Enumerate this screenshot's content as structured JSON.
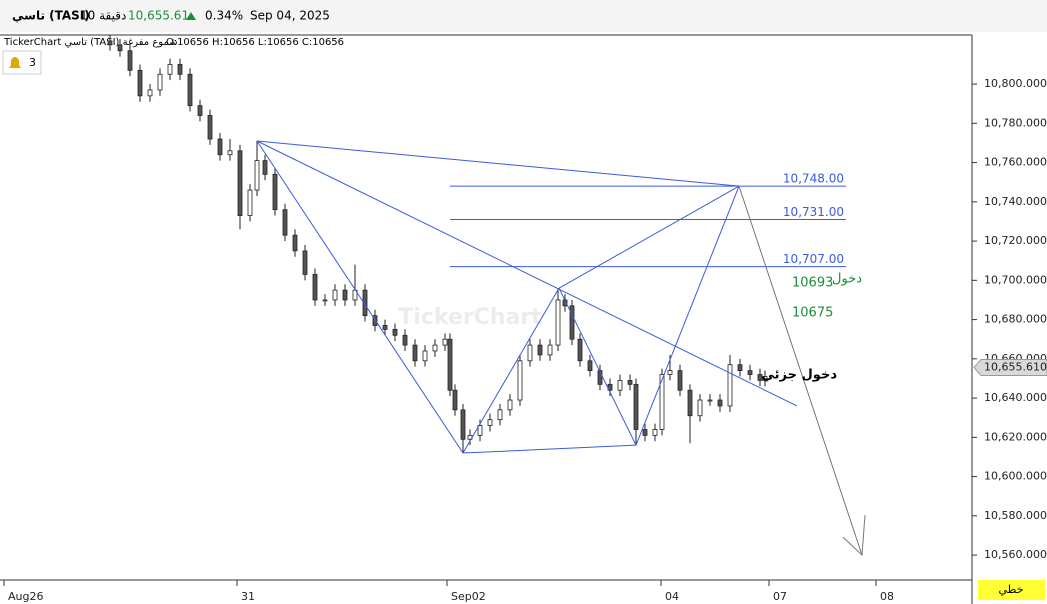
{
  "header": {
    "symbol": "تاسي (TASI)",
    "interval": "10 دقيقة",
    "price": "10,655.61",
    "change": "0.34%",
    "date": "Sep 04, 2025"
  },
  "chart_data": {
    "type": "candlestick",
    "legend_name": "TickerChart تاسي (TASI) شموع مفرغة",
    "ohlc_label": "O:10656  H:10656  L:10656  C:10656",
    "alerts": "3",
    "watermark": "TickerChart",
    "chart_style": "خطي",
    "xlim": [
      0,
      97.2
    ],
    "xticks": [
      {
        "value": 0.4,
        "label": "Aug26"
      },
      {
        "value": 23.7,
        "label": "31"
      },
      {
        "value": 44.7,
        "label": "Sep02"
      },
      {
        "value": 66.1,
        "label": "04"
      },
      {
        "value": 76.9,
        "label": "07"
      },
      {
        "value": 87.6,
        "label": "08"
      }
    ],
    "ylim": [
      10547.3,
      10824.5
    ],
    "yticks": [
      {
        "value": 10560,
        "label": "10,560.0000"
      },
      {
        "value": 10580,
        "label": "10,580.0000"
      },
      {
        "value": 10600,
        "label": "10,600.0000"
      },
      {
        "value": 10620,
        "label": "10,620.0000"
      },
      {
        "value": 10640,
        "label": "10,640.0000"
      },
      {
        "value": 10660,
        "label": "10,660.0000"
      },
      {
        "value": 10680,
        "label": "10,680.0000"
      },
      {
        "value": 10700,
        "label": "10,700.0000"
      },
      {
        "value": 10720,
        "label": "10,720.0000"
      },
      {
        "value": 10740,
        "label": "10,740.0000"
      },
      {
        "value": 10760,
        "label": "10,760.0000"
      },
      {
        "value": 10780,
        "label": "10,780.0000"
      },
      {
        "value": 10800,
        "label": "10,800.0000"
      }
    ],
    "last_price": {
      "value": 10655.6104,
      "label": "10,655.6104"
    },
    "x": [
      11,
      12,
      13,
      14,
      15,
      16,
      17,
      18,
      19,
      20,
      21,
      22,
      23,
      24,
      25,
      25.7,
      26.5,
      27.5,
      28.5,
      29.5,
      30.5,
      31.5,
      32.5,
      33.5,
      34.5,
      35.5,
      36.5,
      37.5,
      38.5,
      39.5,
      40.5,
      41.5,
      42.5,
      43.5,
      44.5,
      45,
      45.5,
      46.3,
      47,
      48,
      49,
      50,
      51,
      52,
      53,
      54,
      55,
      55.8,
      56.5,
      57.2,
      58,
      59,
      60,
      61,
      62,
      63,
      63.6,
      64.5,
      65.5,
      66.2,
      67,
      68,
      69,
      70,
      71,
      72,
      73,
      74,
      75,
      76,
      76.5
    ],
    "open": [
      10822,
      10820,
      10817,
      10807,
      10794,
      10797,
      10805,
      10810,
      10805,
      10789,
      10784,
      10772,
      10764,
      10766,
      10733,
      10746,
      10761,
      10754,
      10736,
      10723,
      10715,
      10703,
      10690,
      10690,
      10695,
      10690,
      10695,
      10682,
      10677,
      10675,
      10672,
      10667,
      10659,
      10664,
      10667,
      10670,
      10644,
      10634,
      10619,
      10621,
      10626,
      10629,
      10634,
      10639,
      10659,
      10667,
      10662,
      10667,
      10690,
      10687,
      10670,
      10659,
      10654,
      10647,
      10644,
      10649,
      10647,
      10624,
      10621,
      10624,
      10652,
      10654,
      10644,
      10631,
      10639,
      10639,
      10636,
      10657,
      10654,
      10652,
      10649
    ],
    "high": [
      10825,
      10823,
      10820,
      10810,
      10800,
      10808,
      10813,
      10813,
      10808,
      10792,
      10787,
      10775,
      10772,
      10769,
      10749,
      10771,
      10764,
      10757,
      10739,
      10726,
      10718,
      10706,
      10693,
      10698,
      10698,
      10708,
      10698,
      10685,
      10680,
      10678,
      10675,
      10670,
      10667,
      10670,
      10673,
      10673,
      10647,
      10637,
      10624,
      10629,
      10632,
      10637,
      10642,
      10662,
      10670,
      10670,
      10670,
      10696,
      10693,
      10690,
      10673,
      10662,
      10657,
      10650,
      10652,
      10652,
      10650,
      10627,
      10627,
      10655,
      10662,
      10657,
      10647,
      10642,
      10642,
      10642,
      10662,
      10660,
      10657,
      10655,
      10654
    ],
    "low": [
      10817,
      10814,
      10804,
      10791,
      10791,
      10794,
      10802,
      10802,
      10786,
      10781,
      10769,
      10761,
      10761,
      10726,
      10730,
      10743,
      10751,
      10733,
      10720,
      10712,
      10700,
      10687,
      10687,
      10687,
      10687,
      10687,
      10679,
      10674,
      10672,
      10669,
      10664,
      10656,
      10656,
      10661,
      10664,
      10641,
      10631,
      10612,
      10616,
      10618,
      10623,
      10626,
      10631,
      10636,
      10656,
      10659,
      10659,
      10664,
      10684,
      10667,
      10656,
      10651,
      10644,
      10641,
      10641,
      10644,
      10616,
      10618,
      10618,
      10621,
      10649,
      10641,
      10617,
      10628,
      10636,
      10633,
      10633,
      10651,
      10649,
      10646,
      10646
    ],
    "close": [
      10820,
      10817,
      10807,
      10794,
      10797,
      10805,
      10810,
      10805,
      10789,
      10784,
      10772,
      10764,
      10766,
      10733,
      10746,
      10761,
      10754,
      10736,
      10723,
      10715,
      10703,
      10690,
      10690,
      10695,
      10690,
      10695,
      10682,
      10677,
      10675,
      10672,
      10667,
      10659,
      10664,
      10667,
      10670,
      10644,
      10634,
      10619,
      10621,
      10626,
      10629,
      10634,
      10639,
      10659,
      10667,
      10662,
      10667,
      10690,
      10687,
      10670,
      10659,
      10654,
      10647,
      10644,
      10649,
      10647,
      10624,
      10621,
      10624,
      10652,
      10654,
      10644,
      10631,
      10639,
      10639,
      10636,
      10657,
      10654,
      10652,
      10649,
      10651
    ],
    "pattern_color": "#3b5bdb",
    "pattern_lines": [
      {
        "x": [
          25.7,
          46.3
        ],
        "y": [
          10771,
          10612
        ]
      },
      {
        "x": [
          46.3,
          55.9
        ],
        "y": [
          10612,
          10696
        ]
      },
      {
        "x": [
          55.9,
          63.6
        ],
        "y": [
          10696,
          10616
        ]
      },
      {
        "x": [
          63.6,
          73.9
        ],
        "y": [
          10616,
          10748
        ]
      },
      {
        "x": [
          25.7,
          73.9
        ],
        "y": [
          10771,
          10748
        ]
      },
      {
        "x": [
          25.7,
          79.7
        ],
        "y": [
          10771,
          10636
        ]
      },
      {
        "x": [
          55.9,
          73.9
        ],
        "y": [
          10696,
          10748
        ]
      },
      {
        "x": [
          46.3,
          63.6
        ],
        "y": [
          10612,
          10616
        ]
      }
    ],
    "projection": {
      "color": "#777777",
      "x": [
        73.9,
        86.2
      ],
      "y": [
        10748,
        10560
      ]
    },
    "levels": [
      {
        "value": 10748,
        "label": "10,748.00",
        "x": [
          45,
          84.6
        ]
      },
      {
        "value": 10731,
        "label": "10,731.00",
        "x": [
          45,
          84.6
        ]
      },
      {
        "value": 10707,
        "label": "10,707.00",
        "x": [
          45,
          84.6
        ]
      }
    ],
    "annotations": [
      "10693",
      "دخول",
      "10675",
      "دخول جزئي"
    ]
  }
}
